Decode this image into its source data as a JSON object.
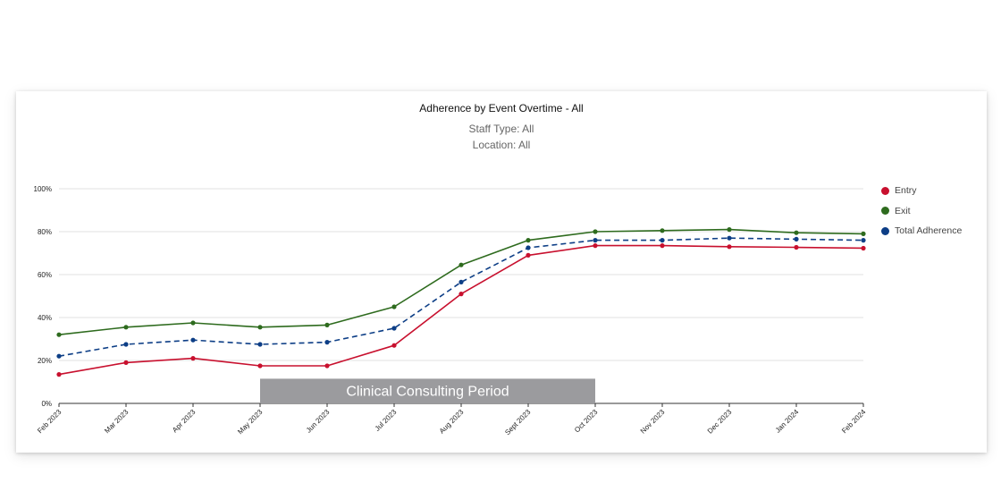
{
  "chart_data": {
    "type": "line",
    "title": "Adherence by Event Overtime - All",
    "subtitles": [
      "Staff Type: All",
      "Location: All"
    ],
    "categories": [
      "Feb 2023",
      "Mar 2023",
      "Apr 2023",
      "May 2023",
      "Jun 2023",
      "Jul 2023",
      "Aug 2023",
      "Sept 2023",
      "Oct 2023",
      "Nov 2023",
      "Dec 2023",
      "Jan 2024",
      "Feb 2024"
    ],
    "ylim": [
      0,
      100
    ],
    "yticks": [
      0,
      20,
      40,
      60,
      80,
      100
    ],
    "ytick_labels": [
      "0%",
      "20%",
      "40%",
      "60%",
      "80%",
      "100%"
    ],
    "grid": true,
    "legend_position": "right",
    "series": [
      {
        "name": "Entry",
        "color": "#c8102e",
        "dash": "solid",
        "values": [
          13.5,
          19,
          21,
          17.5,
          17.5,
          27,
          51,
          69,
          73.5,
          73.5,
          73,
          72.7,
          72.3
        ]
      },
      {
        "name": "Exit",
        "color": "#2e6b1e",
        "dash": "solid",
        "values": [
          32,
          35.5,
          37.5,
          35.5,
          36.5,
          45,
          64.5,
          76,
          80,
          80.5,
          81,
          79.5,
          79
        ]
      },
      {
        "name": "Total Adherence",
        "color": "#0d3e86",
        "dash": "dashed",
        "values": [
          22,
          27.5,
          29.5,
          27.5,
          28.5,
          35,
          56.5,
          72.5,
          76,
          76,
          77,
          76.5,
          76
        ]
      }
    ],
    "annotation": {
      "label": "Clinical Consulting Period",
      "start": "May 2023",
      "end": "Oct 2023",
      "y_top": 11.5,
      "color": "#9b9b9e"
    }
  }
}
